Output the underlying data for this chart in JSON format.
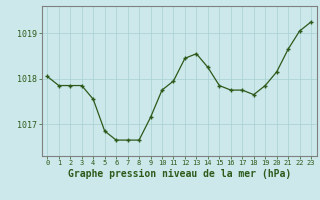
{
  "x": [
    0,
    1,
    2,
    3,
    4,
    5,
    6,
    7,
    8,
    9,
    10,
    11,
    12,
    13,
    14,
    15,
    16,
    17,
    18,
    19,
    20,
    21,
    22,
    23
  ],
  "y": [
    1018.05,
    1017.85,
    1017.85,
    1017.85,
    1017.55,
    1016.85,
    1016.65,
    1016.65,
    1016.65,
    1017.15,
    1017.75,
    1017.95,
    1018.45,
    1018.55,
    1018.25,
    1017.85,
    1017.75,
    1017.75,
    1017.65,
    1017.85,
    1018.15,
    1018.65,
    1019.05,
    1019.25
  ],
  "line_color": "#2d5a1b",
  "marker_color": "#2d5a1b",
  "bg_color": "#cce8ea",
  "grid_color": "#a8d0d3",
  "spine_color": "#808080",
  "xlabel": "Graphe pression niveau de la mer (hPa)",
  "xlabel_color": "#2d5a1b",
  "tick_color": "#2d5a1b",
  "ytick_labels": [
    "1017",
    "1018",
    "1019"
  ],
  "ytick_values": [
    1017,
    1018,
    1019
  ],
  "ylim": [
    1016.3,
    1019.6
  ],
  "xlim": [
    -0.5,
    23.5
  ],
  "xlabel_fontsize": 7
}
